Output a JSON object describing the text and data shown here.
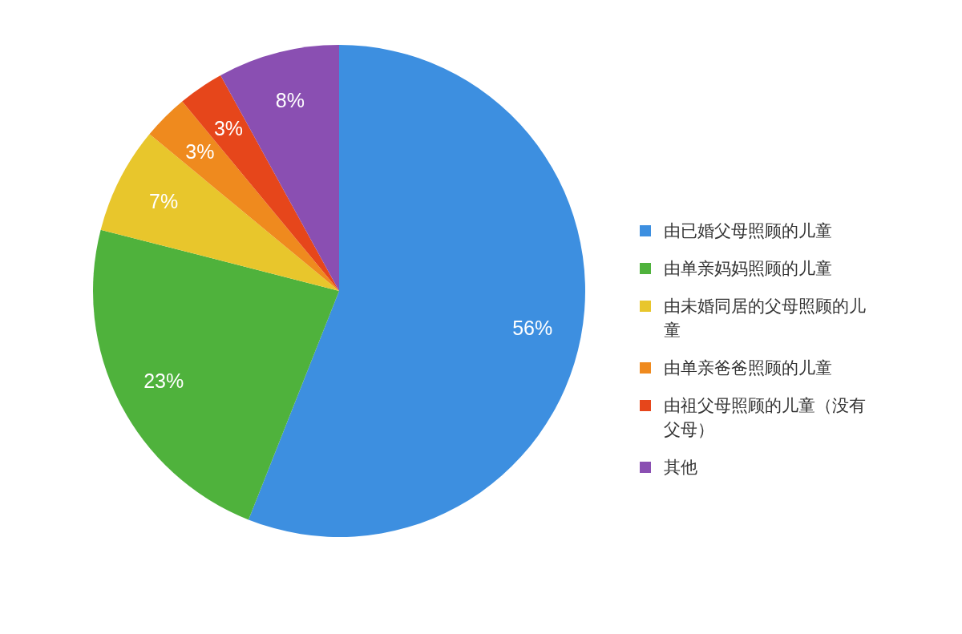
{
  "chart_data": {
    "type": "pie",
    "categories": [
      "由已婚父母照顾的儿童",
      "由单亲妈妈照顾的儿童",
      "由未婚同居的父母照顾的儿童",
      "由单亲爸爸照顾的儿童",
      "由祖父母照顾的儿童（没有父母）",
      "其他"
    ],
    "values": [
      56,
      23,
      7,
      3,
      3,
      8
    ],
    "colors": [
      "#3d8fe0",
      "#4fb23c",
      "#e8c62c",
      "#ef8a1e",
      "#e6461b",
      "#8a4fb2"
    ],
    "value_labels": [
      "56%",
      "23%",
      "7%",
      "3%",
      "3%",
      "8%"
    ],
    "legend": "right"
  }
}
